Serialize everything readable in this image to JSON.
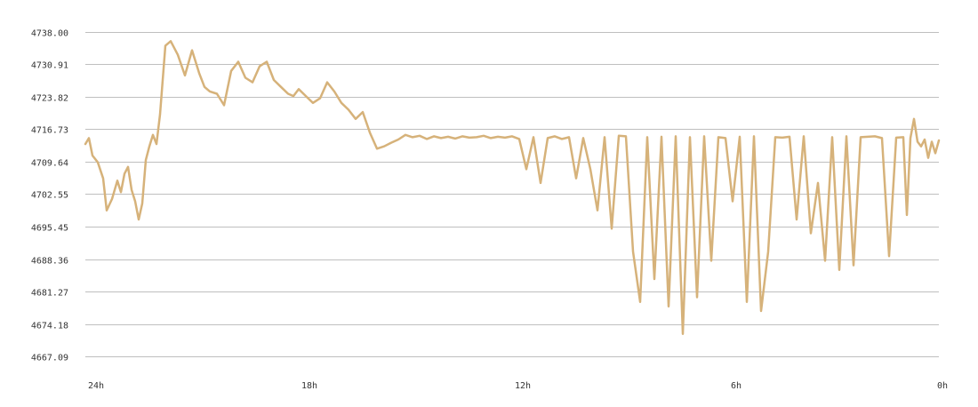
{
  "chart_data": {
    "type": "line",
    "title": "",
    "xlabel": "",
    "ylabel": "",
    "x_ticks": [
      "24h",
      "18h",
      "12h",
      "6h",
      "0h"
    ],
    "x_tick_hours_ago": [
      24,
      18,
      12,
      6,
      0
    ],
    "xlim_hours_ago": [
      24,
      0
    ],
    "y_ticks": [
      "4738.00",
      "4730.91",
      "4723.82",
      "4716.73",
      "4709.64",
      "4702.55",
      "4695.45",
      "4688.36",
      "4681.27",
      "4674.18",
      "4667.09"
    ],
    "ylim": [
      4667.09,
      4738.0
    ],
    "grid": true,
    "legend": "none",
    "line_color": "#d6b27a",
    "grid_color": "#bfbfbf",
    "series": [
      {
        "x_hours_ago": [
          24.0,
          23.9,
          23.8,
          23.65,
          23.5,
          23.4,
          23.25,
          23.1,
          23.0,
          22.9,
          22.8,
          22.7,
          22.6,
          22.5,
          22.4,
          22.3,
          22.2,
          22.1,
          22.0,
          21.9,
          21.75,
          21.6,
          21.4,
          21.2,
          21.0,
          20.8,
          20.65,
          20.5,
          20.3,
          20.1,
          19.9,
          19.7,
          19.5,
          19.3,
          19.1,
          18.9,
          18.7,
          18.5,
          18.3,
          18.15,
          18.0,
          17.8,
          17.6,
          17.4,
          17.2,
          17.0,
          16.8,
          16.6,
          16.4,
          16.2,
          16.0,
          15.8,
          15.6,
          15.4,
          15.2,
          15.0,
          14.8,
          14.6,
          14.4,
          14.2,
          14.0,
          13.8,
          13.6,
          13.4,
          13.2,
          13.0,
          12.8,
          12.6,
          12.4,
          12.2,
          12.0,
          11.8,
          11.6,
          11.4,
          11.2,
          11.0,
          10.8,
          10.6,
          10.4,
          10.2,
          10.0,
          9.8,
          9.6,
          9.4,
          9.2,
          9.0,
          8.8,
          8.6,
          8.4,
          8.2,
          8.0,
          7.8,
          7.6,
          7.4,
          7.2,
          7.0,
          6.8,
          6.6,
          6.4,
          6.2,
          6.0,
          5.8,
          5.6,
          5.4,
          5.2,
          5.0,
          4.8,
          4.6,
          4.4,
          4.2,
          4.0,
          3.8,
          3.6,
          3.4,
          3.2,
          3.0,
          2.8,
          2.6,
          2.4,
          2.2,
          2.0,
          1.8,
          1.6,
          1.4,
          1.2,
          1.0,
          0.9,
          0.8,
          0.7,
          0.6,
          0.5,
          0.4,
          0.3,
          0.2,
          0.1,
          0.0
        ],
        "values": [
          4713.5,
          4714.8,
          4711.0,
          4709.5,
          4706.0,
          4699.0,
          4701.5,
          4705.5,
          4703.0,
          4707.0,
          4708.5,
          4703.5,
          4701.0,
          4697.0,
          4700.5,
          4710.0,
          4713.0,
          4715.5,
          4713.5,
          4720.0,
          4735.0,
          4736.0,
          4733.0,
          4728.5,
          4734.0,
          4729.0,
          4726.0,
          4725.0,
          4724.5,
          4722.0,
          4729.5,
          4731.5,
          4728.0,
          4727.0,
          4730.5,
          4731.5,
          4727.5,
          4726.0,
          4724.5,
          4724.0,
          4725.5,
          4724.0,
          4722.5,
          4723.5,
          4727.0,
          4725.0,
          4722.5,
          4721.0,
          4719.0,
          4720.5,
          4716.0,
          4712.5,
          4713.0,
          4713.8,
          4714.5,
          4715.5,
          4715.0,
          4715.3,
          4714.6,
          4715.2,
          4714.8,
          4715.1,
          4714.7,
          4715.2,
          4714.9,
          4715.0,
          4715.3,
          4714.8,
          4715.1,
          4714.9,
          4715.2,
          4714.6,
          4708.0,
          4715.0,
          4705.0,
          4714.8,
          4715.2,
          4714.6,
          4715.0,
          4706.0,
          4714.8,
          4708.0,
          4699.0,
          4715.0,
          4695.0,
          4715.3,
          4715.2,
          4690.0,
          4679.0,
          4715.0,
          4684.0,
          4715.1,
          4678.0,
          4715.2,
          4672.0,
          4715.0,
          4680.0,
          4715.2,
          4688.0,
          4715.0,
          4714.8,
          4701.0,
          4715.1,
          4679.0,
          4715.2,
          4677.0,
          4690.0,
          4715.0,
          4714.9,
          4715.1,
          4697.0,
          4715.2,
          4694.0,
          4705.0,
          4688.0,
          4715.0,
          4686.0,
          4715.2,
          4687.0,
          4715.0,
          4715.1,
          4715.2,
          4714.8,
          4689.0,
          4714.9,
          4715.0,
          4698.0,
          4714.8,
          4719.0,
          4714.0,
          4713.0,
          4714.5,
          4710.5,
          4714.0,
          4711.5,
          4714.3
        ]
      }
    ]
  }
}
